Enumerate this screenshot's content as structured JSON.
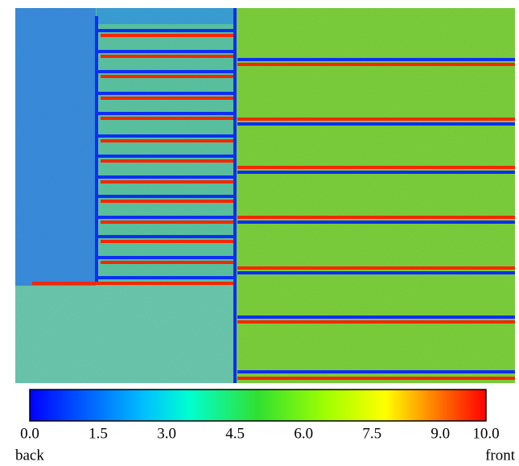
{
  "chart_data": {
    "type": "colorbar-image",
    "clim": [
      0,
      10
    ],
    "ticks": [
      {
        "value": 0,
        "label": "0.0"
      },
      1.5,
      {
        "value": 3,
        "label": "3.0"
      },
      4.5,
      {
        "value": 6,
        "label": "6.0"
      },
      7.5,
      {
        "value": 9,
        "label": "9.0"
      },
      {
        "value": 10,
        "label": "10.0"
      }
    ],
    "min_label": "back",
    "max_label": "front"
  }
}
